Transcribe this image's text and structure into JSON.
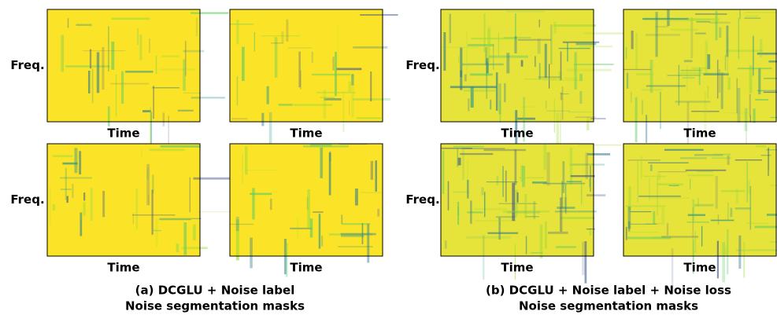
{
  "figure": {
    "groups": [
      {
        "caption": [
          "(a) DCGLU + Noise label",
          "Noise segmentation masks"
        ],
        "y_labels": [
          "Freq.",
          "Freq."
        ],
        "x_labels": [
          "Time",
          "Time",
          "Time",
          "Time"
        ]
      },
      {
        "caption": [
          "(b) DCGLU + Noise label + Noise loss",
          "Noise segmentation masks"
        ],
        "y_labels": [
          "Freq.",
          "Freq."
        ],
        "x_labels": [
          "Time",
          "Time",
          "Time",
          "Time"
        ]
      }
    ]
  }
}
